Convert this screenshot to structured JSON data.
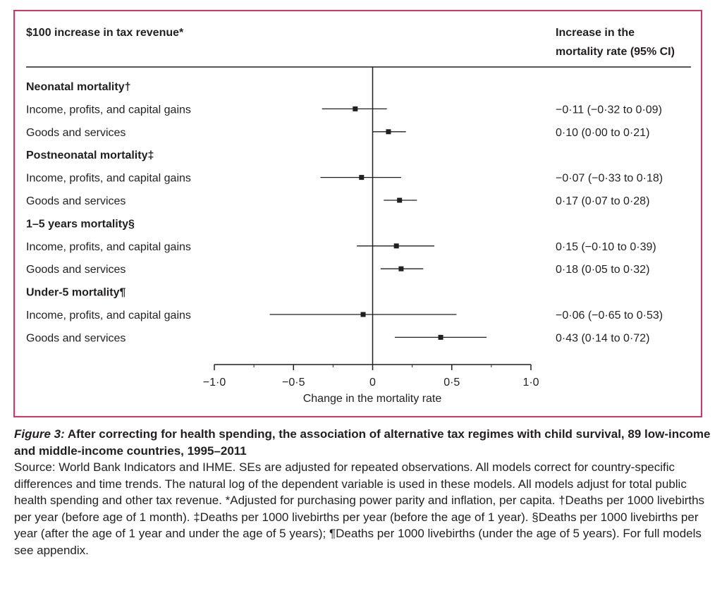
{
  "chart_data": {
    "type": "forest",
    "header_left": "$100 increase in tax revenue*",
    "header_right_line1": "Increase in the",
    "header_right_line2": "mortality rate (95% CI)",
    "xlabel": "Change in the mortality rate",
    "xlim": [
      -1.0,
      1.0
    ],
    "ticks": [
      -1.0,
      -0.5,
      0,
      0.5,
      1.0
    ],
    "tick_labels": [
      "−1·0",
      "−0·5",
      "0",
      "0·5",
      "1·0"
    ],
    "rows": [
      {
        "kind": "group",
        "label": "Neonatal mortality†"
      },
      {
        "kind": "item",
        "label": "Income, profits, and capital gains",
        "est": -0.11,
        "lo": -0.32,
        "hi": 0.09,
        "ci_text": "−0·11 (−0·32 to 0·09)"
      },
      {
        "kind": "item",
        "label": "Goods and services",
        "est": 0.1,
        "lo": 0.0,
        "hi": 0.21,
        "ci_text": "0·10 (0·00 to 0·21)"
      },
      {
        "kind": "group",
        "label": "Postneonatal mortality‡"
      },
      {
        "kind": "item",
        "label": "Income, profits, and capital gains",
        "est": -0.07,
        "lo": -0.33,
        "hi": 0.18,
        "ci_text": "−0·07 (−0·33 to 0·18)"
      },
      {
        "kind": "item",
        "label": "Goods and services",
        "est": 0.17,
        "lo": 0.07,
        "hi": 0.28,
        "ci_text": "0·17 (0·07 to 0·28)"
      },
      {
        "kind": "group",
        "label": "1–5 years mortality§"
      },
      {
        "kind": "item",
        "label": "Income, profits, and capital gains",
        "est": 0.15,
        "lo": -0.1,
        "hi": 0.39,
        "ci_text": "0·15 (−0·10 to 0·39)"
      },
      {
        "kind": "item",
        "label": "Goods and services",
        "est": 0.18,
        "lo": 0.05,
        "hi": 0.32,
        "ci_text": "0·18 (0·05 to 0·32)"
      },
      {
        "kind": "group",
        "label": "Under-5 mortality¶"
      },
      {
        "kind": "item",
        "label": "Income, profits, and capital gains",
        "est": -0.06,
        "lo": -0.65,
        "hi": 0.53,
        "ci_text": "−0·06 (−0·65 to 0·53)"
      },
      {
        "kind": "item",
        "label": "Goods and services",
        "est": 0.43,
        "lo": 0.14,
        "hi": 0.72,
        "ci_text": "0·43 (0·14 to 0·72)"
      }
    ]
  },
  "caption": {
    "figure_label": "Figure 3:",
    "title": "After correcting for health spending, the association of alternative tax regimes with child survival, 89 low-income and middle-income countries, 1995–2011",
    "body": "Source: World Bank Indicators and IHME. SEs are adjusted for repeated observations. All models correct for country-specific differences and time trends. The natural log of the dependent variable is used in these models. All models adjust for total public health spending and other tax revenue. *Adjusted for purchasing power parity and inflation, per capita. †Deaths per 1000 livebirths per year (before age of 1 month). ‡Deaths per 1000 livebirths per year (before the age of 1 year). §Deaths per 1000 livebirths per year (after the age of 1 year and under the age of 5 years); ¶Deaths per 1000 livebirths (under the age of 5 years). For full models see appendix."
  },
  "colors": {
    "frame": "#d6336c",
    "ink": "#231f20"
  }
}
